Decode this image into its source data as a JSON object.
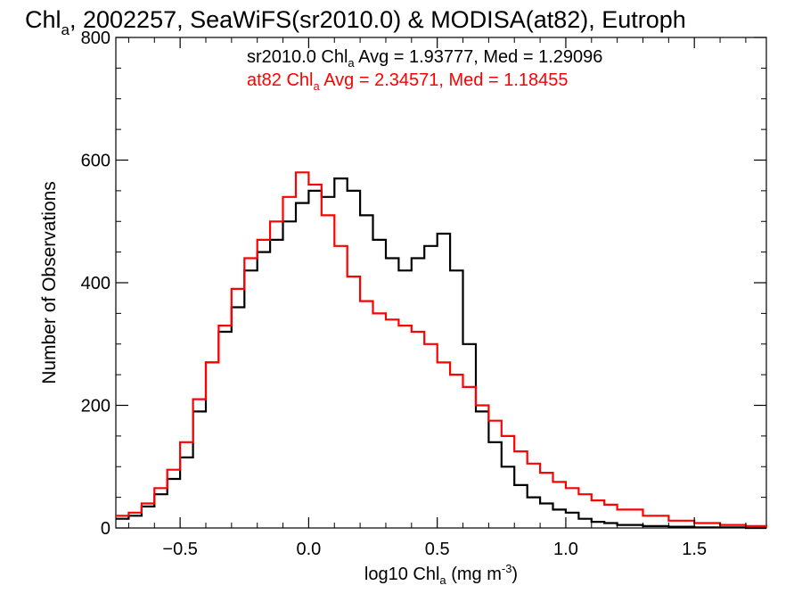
{
  "chart_data": {
    "type": "line",
    "title_main": "Chl",
    "title_sub": "a",
    "title_rest": ", 2002257, SeaWiFS(sr2010.0) & MODISA(at82), Eutroph",
    "xlabel_pre": "log10 Chl",
    "xlabel_sub": "a",
    "xlabel_units": " (mg m",
    "xlabel_sup": "-3",
    "xlabel_close": ")",
    "ylabel": "Number of Observations",
    "xlim": [
      -0.75,
      1.78
    ],
    "ylim": [
      0,
      800
    ],
    "x_ticks": [
      -0.5,
      0.0,
      0.5,
      1.0,
      1.5
    ],
    "x_tick_labels": [
      "−0.5",
      "0.0",
      "0.5",
      "1.0",
      "1.5"
    ],
    "y_ticks": [
      0,
      200,
      400,
      600,
      800
    ],
    "y_tick_labels": [
      "0",
      "200",
      "400",
      "600",
      "800"
    ],
    "grid": false,
    "series": [
      {
        "color": "#000000",
        "annotation": {
          "pre": "sr2010.0 Chl",
          "sub": "a",
          "post": " Avg = 1.93777, Med = 1.29096"
        },
        "x": [
          -0.75,
          -0.7,
          -0.65,
          -0.6,
          -0.55,
          -0.5,
          -0.45,
          -0.4,
          -0.35,
          -0.3,
          -0.25,
          -0.2,
          -0.15,
          -0.1,
          -0.05,
          0.0,
          0.05,
          0.1,
          0.15,
          0.2,
          0.25,
          0.3,
          0.35,
          0.4,
          0.45,
          0.5,
          0.55,
          0.6,
          0.65,
          0.7,
          0.75,
          0.8,
          0.85,
          0.9,
          0.95,
          1.0,
          1.05,
          1.1,
          1.15,
          1.2,
          1.3,
          1.4,
          1.5,
          1.6,
          1.7,
          1.78
        ],
        "values": [
          15,
          20,
          35,
          55,
          80,
          115,
          190,
          270,
          320,
          360,
          420,
          450,
          470,
          500,
          530,
          550,
          540,
          570,
          550,
          510,
          470,
          440,
          420,
          440,
          460,
          480,
          420,
          300,
          190,
          140,
          100,
          70,
          50,
          40,
          30,
          25,
          15,
          10,
          8,
          5,
          3,
          2,
          1,
          1,
          0,
          0
        ]
      },
      {
        "color": "#ff0000",
        "annotation": {
          "pre": "at82 Chl",
          "sub": "a",
          "post": " Avg = 2.34571, Med = 1.18455"
        },
        "x": [
          -0.75,
          -0.7,
          -0.65,
          -0.6,
          -0.55,
          -0.5,
          -0.45,
          -0.4,
          -0.35,
          -0.3,
          -0.25,
          -0.2,
          -0.15,
          -0.1,
          -0.05,
          0.0,
          0.05,
          0.1,
          0.15,
          0.2,
          0.25,
          0.3,
          0.35,
          0.4,
          0.45,
          0.5,
          0.55,
          0.6,
          0.65,
          0.7,
          0.75,
          0.8,
          0.85,
          0.9,
          0.95,
          1.0,
          1.05,
          1.1,
          1.15,
          1.2,
          1.3,
          1.4,
          1.5,
          1.6,
          1.7,
          1.78
        ],
        "values": [
          20,
          25,
          40,
          65,
          95,
          140,
          210,
          270,
          330,
          390,
          440,
          470,
          500,
          540,
          580,
          560,
          510,
          460,
          410,
          370,
          350,
          340,
          330,
          320,
          300,
          270,
          250,
          230,
          200,
          175,
          150,
          125,
          105,
          90,
          75,
          65,
          55,
          45,
          38,
          30,
          20,
          12,
          8,
          5,
          3,
          2
        ]
      }
    ]
  }
}
